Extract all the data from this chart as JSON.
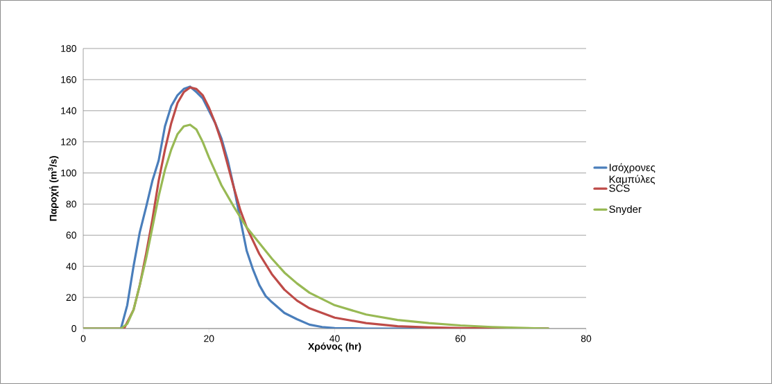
{
  "chart_data": {
    "type": "line",
    "xlabel": "Χρόνος (hr)",
    "ylabel": "Παροχή (m$^{3}$/s)",
    "xlim": [
      0,
      80
    ],
    "ylim": [
      0,
      180
    ],
    "xticks": [
      0,
      20,
      40,
      60,
      80
    ],
    "yticks": [
      0,
      20,
      40,
      60,
      80,
      100,
      120,
      140,
      160,
      180
    ],
    "grid": "y",
    "legend": "right",
    "marker": "none",
    "line_style": "solid",
    "series": [
      {
        "name": "Ισόχρονες Καμπύλες",
        "color": "#4a7ebb",
        "x": [
          0,
          6,
          7,
          8,
          9,
          10,
          11,
          12,
          13,
          14,
          15,
          16,
          17,
          18,
          19,
          20,
          21,
          22,
          23,
          24,
          25,
          26,
          27,
          28,
          29,
          30,
          32,
          34,
          36,
          38,
          40,
          45,
          74
        ],
        "values": [
          0,
          0,
          15,
          40,
          62,
          78,
          95,
          108,
          130,
          143,
          150,
          154,
          155.5,
          152,
          148,
          140,
          132,
          122,
          108,
          90,
          70,
          50,
          38,
          28,
          21,
          17,
          10,
          6,
          2.5,
          1,
          0.3,
          0,
          0
        ]
      },
      {
        "name": "SCS",
        "color": "#be4b48",
        "x": [
          0,
          6.5,
          8,
          9,
          10,
          11,
          12,
          13,
          14,
          15,
          16,
          17,
          18,
          19,
          20,
          21,
          22,
          23,
          24,
          25,
          26,
          28,
          30,
          32,
          34,
          36,
          40,
          45,
          50,
          55,
          60,
          74
        ],
        "values": [
          0,
          0,
          12,
          28,
          48,
          70,
          95,
          115,
          132,
          145,
          152,
          155,
          154,
          150,
          142,
          132,
          120,
          105,
          90,
          76,
          65,
          48,
          35,
          25,
          18,
          13,
          7,
          3.5,
          1.5,
          0.7,
          0.3,
          0
        ]
      },
      {
        "name": "Snyder",
        "color": "#98b954",
        "x": [
          0,
          6,
          7,
          8,
          9,
          10,
          11,
          12,
          13,
          14,
          15,
          16,
          17,
          18,
          19,
          20,
          22,
          24,
          26,
          28,
          30,
          32,
          34,
          36,
          38,
          40,
          45,
          50,
          55,
          60,
          65,
          70,
          74
        ],
        "values": [
          0,
          0,
          3,
          12,
          28,
          45,
          65,
          85,
          102,
          115,
          125,
          130,
          131,
          128,
          120,
          110,
          92,
          78,
          65,
          55,
          45,
          36,
          29,
          23,
          19,
          15,
          9,
          5.5,
          3.5,
          2,
          1,
          0.4,
          0
        ]
      }
    ]
  }
}
